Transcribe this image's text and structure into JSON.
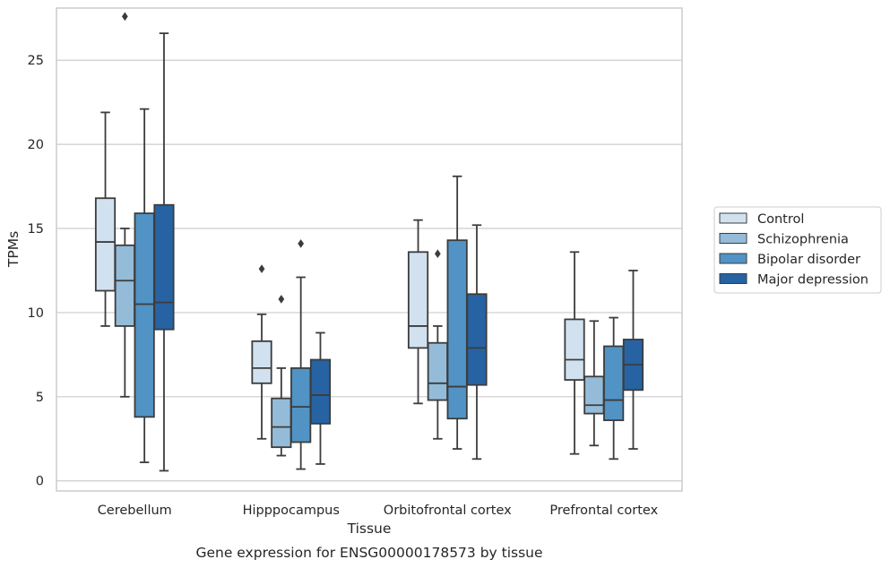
{
  "chart_data": {
    "type": "boxplot",
    "title": "",
    "caption": "Gene expression for ENSG00000178573 by tissue",
    "xlabel": "Tissue",
    "ylabel": "TPMs",
    "ylim": [
      -0.6,
      28.1
    ],
    "yticks": [
      0,
      5,
      10,
      15,
      20,
      25
    ],
    "grid": "horizontal",
    "legend_position": "right",
    "categories": [
      "Cerebellum",
      "Hipppocampus",
      "Orbitofrontal cortex",
      "Prefrontal cortex"
    ],
    "series": [
      {
        "name": "Control",
        "color": "#d1e1f0",
        "boxes": [
          {
            "whislo": 9.2,
            "q1": 11.3,
            "med": 14.2,
            "q3": 16.8,
            "whishi": 21.9,
            "fliers": []
          },
          {
            "whislo": 2.5,
            "q1": 5.8,
            "med": 6.7,
            "q3": 8.3,
            "whishi": 9.9,
            "fliers": [
              12.6
            ]
          },
          {
            "whislo": 4.6,
            "q1": 7.9,
            "med": 9.2,
            "q3": 13.6,
            "whishi": 15.5,
            "fliers": []
          },
          {
            "whislo": 1.6,
            "q1": 6.0,
            "med": 7.2,
            "q3": 9.6,
            "whishi": 13.6,
            "fliers": []
          }
        ]
      },
      {
        "name": "Schizophrenia",
        "color": "#94bcd9",
        "boxes": [
          {
            "whislo": 5.0,
            "q1": 9.2,
            "med": 11.9,
            "q3": 14.0,
            "whishi": 15.0,
            "fliers": [
              27.6
            ]
          },
          {
            "whislo": 1.5,
            "q1": 2.0,
            "med": 3.2,
            "q3": 4.9,
            "whishi": 6.7,
            "fliers": [
              10.8
            ]
          },
          {
            "whislo": 2.5,
            "q1": 4.8,
            "med": 5.8,
            "q3": 8.2,
            "whishi": 9.2,
            "fliers": [
              13.5
            ]
          },
          {
            "whislo": 2.1,
            "q1": 4.0,
            "med": 4.5,
            "q3": 6.2,
            "whishi": 9.5,
            "fliers": []
          }
        ]
      },
      {
        "name": "Bipolar disorder",
        "color": "#5193c4",
        "boxes": [
          {
            "whislo": 1.1,
            "q1": 3.8,
            "med": 10.5,
            "q3": 15.9,
            "whishi": 22.1,
            "fliers": []
          },
          {
            "whislo": 0.7,
            "q1": 2.3,
            "med": 4.4,
            "q3": 6.7,
            "whishi": 12.1,
            "fliers": [
              14.1
            ]
          },
          {
            "whislo": 1.9,
            "q1": 3.7,
            "med": 5.6,
            "q3": 14.3,
            "whishi": 18.1,
            "fliers": []
          },
          {
            "whislo": 1.3,
            "q1": 3.6,
            "med": 4.8,
            "q3": 8.0,
            "whishi": 9.7,
            "fliers": []
          }
        ]
      },
      {
        "name": "Major depression",
        "color": "#2763a3",
        "boxes": [
          {
            "whislo": 0.6,
            "q1": 9.0,
            "med": 10.6,
            "q3": 16.4,
            "whishi": 26.6,
            "fliers": []
          },
          {
            "whislo": 1.0,
            "q1": 3.4,
            "med": 5.1,
            "q3": 7.2,
            "whishi": 8.8,
            "fliers": []
          },
          {
            "whislo": 1.3,
            "q1": 5.7,
            "med": 7.9,
            "q3": 11.1,
            "whishi": 15.2,
            "fliers": []
          },
          {
            "whislo": 1.9,
            "q1": 5.4,
            "med": 6.9,
            "q3": 8.4,
            "whishi": 12.5,
            "fliers": []
          }
        ]
      }
    ]
  }
}
